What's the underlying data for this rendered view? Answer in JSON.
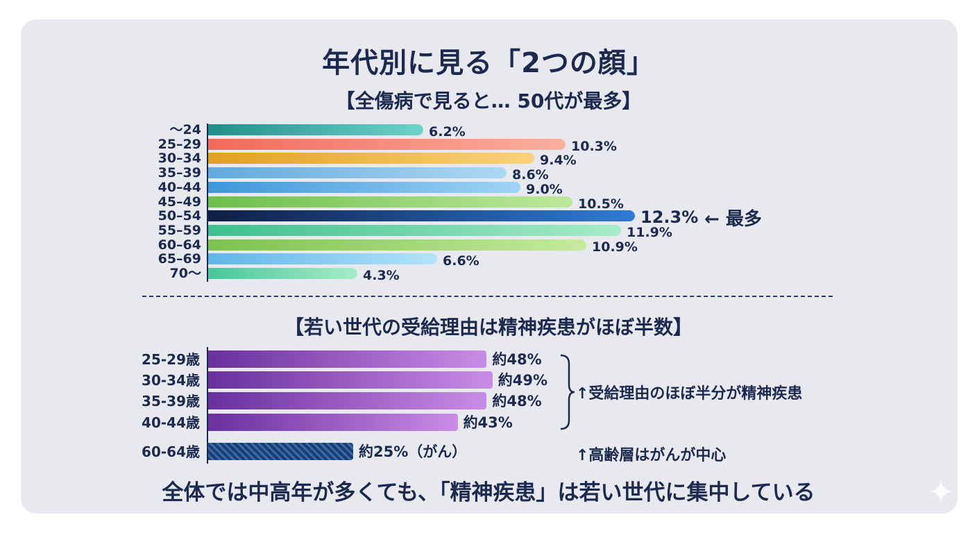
{
  "title": "年代別に見る「2つの顔」",
  "section1": {
    "subtitle": "【全傷病で見ると… 50代が最多】",
    "peak_note": "← 最多"
  },
  "section2": {
    "subtitle": "【若い世代の受給理由は精神疾患がほぼ半数】",
    "note_mental": "↑受給理由のほぼ半分が精神疾患",
    "note_cancer": "↑高齢層はがんが中心"
  },
  "footer": "全体では中高年が多くても、「精神疾患」は若い世代に集中している",
  "chart_data": [
    {
      "type": "bar",
      "orientation": "horizontal",
      "title": "【全傷病で見ると… 50代が最多】",
      "categories": [
        "〜24",
        "25–29",
        "30–34",
        "35–39",
        "40–44",
        "45–49",
        "50–54",
        "55–59",
        "60–64",
        "65–69",
        "70〜"
      ],
      "values": [
        6.2,
        10.3,
        9.4,
        8.6,
        9.0,
        10.5,
        12.3,
        11.9,
        10.9,
        6.6,
        4.3
      ],
      "labels": [
        "6.2%",
        "10.3%",
        "9.4%",
        "8.6%",
        "9.0%",
        "10.5%",
        "12.3%",
        "11.9%",
        "10.9%",
        "6.6%",
        "4.3%"
      ],
      "unit": "%",
      "xlim": [
        0,
        15
      ],
      "colors": [
        [
          "#1f8f8a",
          "#6ed3c8"
        ],
        [
          "#f06a5a",
          "#fbb0a0"
        ],
        [
          "#e2a020",
          "#fad27a"
        ],
        [
          "#62a9dd",
          "#aed8f4"
        ],
        [
          "#3f97d8",
          "#9fd4f5"
        ],
        [
          "#6cbf4a",
          "#bde89c"
        ],
        [
          "#0e1f44",
          "#2f7bd6"
        ],
        [
          "#3fbf8f",
          "#a7ecc8"
        ],
        [
          "#7cc24e",
          "#c5eb9c"
        ],
        [
          "#5fb6e6",
          "#b3e3f9"
        ],
        [
          "#47c79a",
          "#a8ebc9"
        ]
      ],
      "highlight_index": 6
    },
    {
      "type": "bar",
      "orientation": "horizontal",
      "title": "【若い世代の受給理由は精神疾患がほぼ半数】",
      "categories": [
        "25-29歳",
        "30-34歳",
        "35-39歳",
        "40-44歳",
        "60-64歳"
      ],
      "values": [
        48,
        49,
        48,
        43,
        25
      ],
      "labels": [
        "約48%",
        "約49%",
        "約48%",
        "約43%",
        "約25%（がん）"
      ],
      "unit": "%",
      "xlim": [
        0,
        58
      ],
      "colors": [
        "#6b2f9e",
        "#6b2f9e",
        "#6b2f9e",
        "#6b2f9e",
        "#1c3d73"
      ],
      "series_meaning": [
        "精神疾患",
        "精神疾患",
        "精神疾患",
        "精神疾患",
        "がん"
      ]
    }
  ]
}
